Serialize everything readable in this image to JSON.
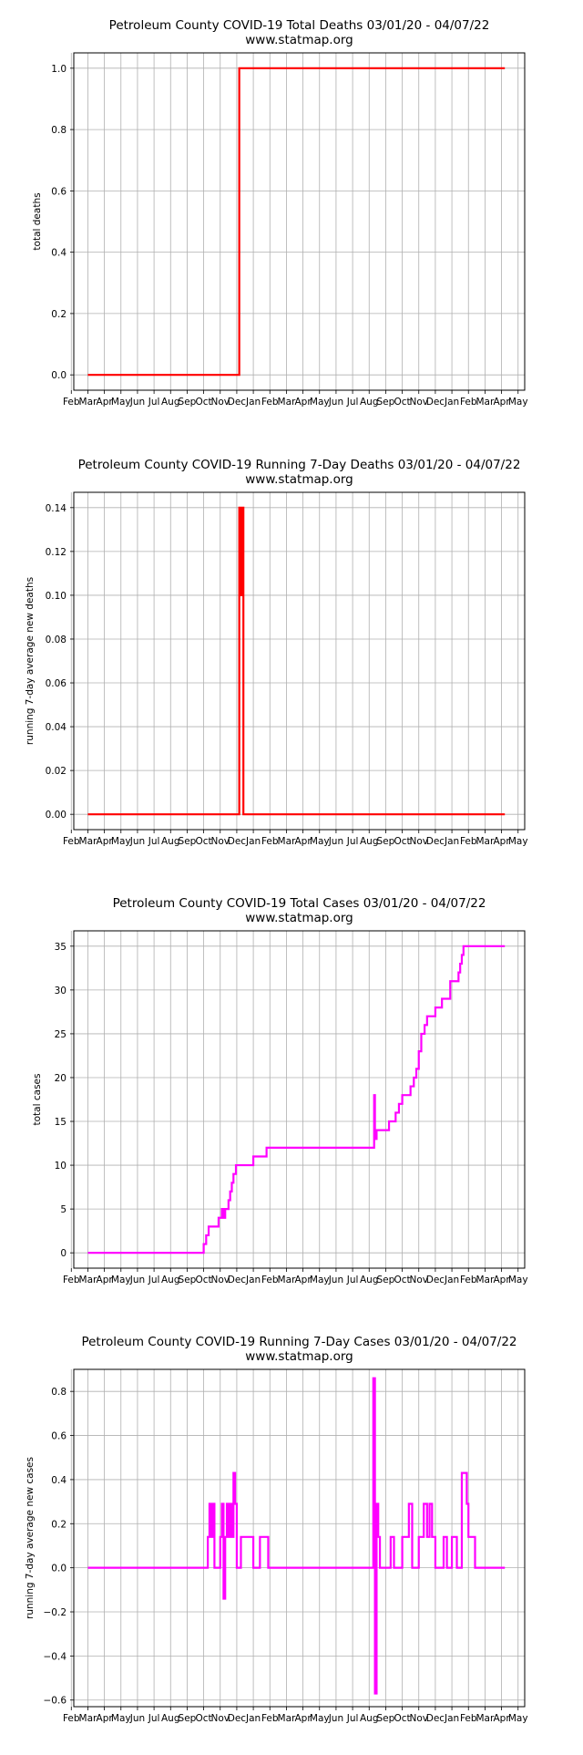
{
  "colors": {
    "deaths": "#ff0000",
    "cases": "#ff00ff",
    "grid": "#b0b0b0",
    "axis": "#000000"
  },
  "x_months": [
    "Feb",
    "Mar",
    "Apr",
    "May",
    "Jun",
    "Jul",
    "Aug",
    "Sep",
    "Oct",
    "Nov",
    "Dec",
    "Jan",
    "Feb",
    "Mar",
    "Apr",
    "May",
    "Jun",
    "Jul",
    "Aug",
    "Sep",
    "Oct",
    "Nov",
    "Dec",
    "Jan",
    "Feb",
    "Mar",
    "Apr",
    "May"
  ],
  "chart_data": [
    {
      "type": "line",
      "title": "Petroleum County COVID-19 Total Deaths 03/01/20 - 04/07/22",
      "subtitle": "www.statmap.org",
      "ylabel": "total deaths",
      "xlabel": "",
      "color": "deaths",
      "grid": true,
      "xlim": [
        -0.85,
        26.4
      ],
      "ylim": [
        -0.05,
        1.05
      ],
      "yticks": [
        "0.0",
        "0.2",
        "0.4",
        "0.6",
        "0.8",
        "1.0"
      ],
      "ytick_values": [
        0,
        0.2,
        0.4,
        0.6,
        0.8,
        1.0
      ],
      "series": [
        {
          "x": [
            0.0,
            9.15,
            9.15,
            25.2
          ],
          "y": [
            0,
            0,
            1,
            1
          ]
        }
      ]
    },
    {
      "type": "line",
      "title": "Petroleum County COVID-19 Running 7-Day Deaths 03/01/20 - 04/07/22",
      "subtitle": "www.statmap.org",
      "ylabel": "running 7-day average new deaths",
      "xlabel": "",
      "color": "deaths",
      "grid": true,
      "xlim": [
        -0.85,
        26.4
      ],
      "ylim": [
        -0.007,
        0.147
      ],
      "yticks": [
        "0.00",
        "0.02",
        "0.04",
        "0.06",
        "0.08",
        "0.10",
        "0.12",
        "0.14"
      ],
      "ytick_values": [
        0,
        0.02,
        0.04,
        0.06,
        0.08,
        0.1,
        0.12,
        0.14
      ],
      "series": [
        {
          "x": [
            0.0,
            9.15,
            9.15,
            9.22,
            9.22,
            9.32,
            9.32,
            9.4,
            9.4,
            25.2
          ],
          "y": [
            0,
            0,
            0.14,
            0.14,
            0.1,
            0.1,
            0.14,
            0.14,
            0,
            0
          ]
        }
      ]
    },
    {
      "type": "line",
      "title": "Petroleum County COVID-19 Total Cases 03/01/20 - 04/07/22",
      "subtitle": "www.statmap.org",
      "ylabel": "total cases",
      "xlabel": "",
      "color": "cases",
      "grid": true,
      "xlim": [
        -0.85,
        26.4
      ],
      "ylim": [
        -1.75,
        36.75
      ],
      "yticks": [
        "0",
        "5",
        "10",
        "15",
        "20",
        "25",
        "30",
        "35"
      ],
      "ytick_values": [
        0,
        5,
        10,
        15,
        20,
        25,
        30,
        35
      ],
      "series": [
        {
          "x": [
            0.0,
            7.0,
            7.0,
            7.15,
            7.15,
            7.3,
            7.3,
            7.9,
            7.9,
            8.1,
            8.1,
            8.2,
            8.2,
            8.3,
            8.3,
            8.5,
            8.5,
            8.6,
            8.6,
            8.7,
            8.7,
            8.8,
            8.8,
            8.95,
            8.95,
            10.0,
            10.0,
            10.8,
            10.8,
            17.3,
            17.3,
            17.35,
            17.35,
            17.45,
            17.45,
            17.6,
            17.6,
            18.2,
            18.2,
            18.6,
            18.6,
            18.8,
            18.8,
            19.0,
            19.0,
            19.5,
            19.5,
            19.7,
            19.7,
            19.85,
            19.85,
            20.0,
            20.0,
            20.15,
            20.15,
            20.35,
            20.35,
            20.5,
            20.5,
            21.0,
            21.0,
            21.4,
            21.4,
            21.9,
            21.9,
            22.4,
            22.4,
            22.5,
            22.5,
            22.6,
            22.6,
            22.7,
            22.7,
            22.95,
            22.95,
            23.4,
            23.4,
            25.2
          ],
          "y": [
            0,
            0,
            1,
            1,
            2,
            2,
            3,
            3,
            4,
            4,
            5,
            5,
            4,
            4,
            5,
            5,
            6,
            6,
            7,
            7,
            8,
            8,
            9,
            9,
            10,
            10,
            11,
            11,
            12,
            12,
            18,
            18,
            13,
            13,
            14,
            14,
            14,
            14,
            15,
            15,
            16,
            16,
            17,
            17,
            18,
            18,
            19,
            19,
            20,
            20,
            21,
            21,
            23,
            23,
            25,
            25,
            26,
            26,
            27,
            27,
            28,
            28,
            29,
            29,
            31,
            31,
            32,
            32,
            33,
            33,
            34,
            34,
            35,
            35,
            35,
            35,
            35,
            35
          ]
        }
      ]
    },
    {
      "type": "line",
      "title": "Petroleum County COVID-19 Running 7-Day Cases 03/01/20 - 04/07/22",
      "subtitle": "www.statmap.org",
      "ylabel": "running 7-day average new cases",
      "xlabel": "",
      "color": "cases",
      "grid": true,
      "xlim": [
        -0.85,
        26.4
      ],
      "ylim": [
        -0.63,
        0.9
      ],
      "yticks": [
        "−0.6",
        "−0.4",
        "−0.2",
        "0.0",
        "0.2",
        "0.4",
        "0.6",
        "0.8"
      ],
      "ytick_values": [
        -0.6,
        -0.4,
        -0.2,
        0,
        0.2,
        0.4,
        0.6,
        0.8
      ],
      "series": [
        {
          "x": [
            0.0,
            7.25,
            7.25,
            7.35,
            7.35,
            7.45,
            7.45,
            7.55,
            7.55,
            7.65,
            7.65,
            8.0,
            8.0,
            8.1,
            8.1,
            8.2,
            8.2,
            8.3,
            8.3,
            8.4,
            8.4,
            8.5,
            8.5,
            8.6,
            8.6,
            8.7,
            8.7,
            8.8,
            8.8,
            8.9,
            8.9,
            9.0,
            9.0,
            9.25,
            9.25,
            10.0,
            10.0,
            10.4,
            10.4,
            10.9,
            10.9,
            11.1,
            11.1,
            17.25,
            17.25,
            17.35,
            17.35,
            17.45,
            17.45,
            17.55,
            17.55,
            17.65,
            17.65,
            18.3,
            18.3,
            18.5,
            18.5,
            19.0,
            19.0,
            19.4,
            19.4,
            19.6,
            19.6,
            20.0,
            20.0,
            20.3,
            20.3,
            20.5,
            20.5,
            20.65,
            20.65,
            20.8,
            20.8,
            21.0,
            21.0,
            21.5,
            21.5,
            21.7,
            21.7,
            22.0,
            22.0,
            22.3,
            22.3,
            22.6,
            22.6,
            22.9,
            22.9,
            23.0,
            23.0,
            23.4,
            23.4,
            23.6,
            23.6,
            25.2
          ],
          "y": [
            0,
            0,
            0.14,
            0.14,
            0.29,
            0.29,
            0.14,
            0.14,
            0.29,
            0.29,
            0,
            0,
            0.14,
            0.14,
            0.29,
            0.29,
            -0.14,
            -0.14,
            0.14,
            0.14,
            0.29,
            0.29,
            0.14,
            0.14,
            0.29,
            0.29,
            0.14,
            0.14,
            0.43,
            0.43,
            0.29,
            0.29,
            0,
            0,
            0.14,
            0.14,
            0,
            0,
            0.14,
            0.14,
            0,
            0,
            0,
            0,
            0.86,
            0.86,
            -0.57,
            -0.57,
            0.29,
            0.29,
            0.14,
            0.14,
            0,
            0,
            0.14,
            0.14,
            0,
            0,
            0.14,
            0.14,
            0.29,
            0.29,
            0,
            0,
            0.14,
            0.14,
            0.29,
            0.29,
            0.14,
            0.14,
            0.29,
            0.29,
            0.14,
            0.14,
            0,
            0,
            0.14,
            0.14,
            0,
            0,
            0.14,
            0.14,
            0,
            0,
            0.43,
            0.43,
            0.29,
            0.29,
            0.14,
            0.14,
            0,
            0,
            0,
            0
          ]
        }
      ]
    }
  ]
}
